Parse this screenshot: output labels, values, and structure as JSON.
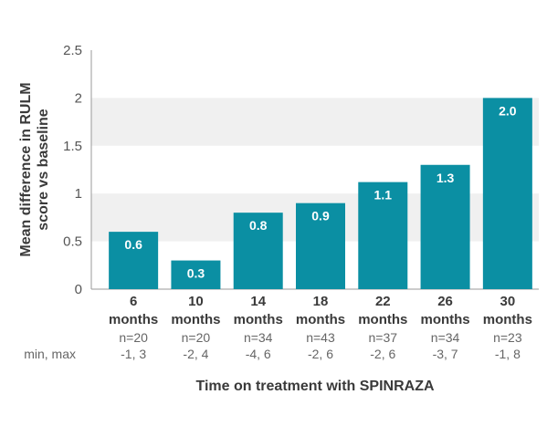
{
  "chart_data": {
    "type": "bar",
    "ylabel_line1": "Mean difference in RULM",
    "ylabel_line2": "score vs baseline",
    "xlabel": "Time on treatment with SPINRAZA",
    "ylim": [
      0,
      2.5
    ],
    "yticks": [
      "0",
      "0.5",
      "1",
      "1.5",
      "2",
      "2.5"
    ],
    "grid": "alternating horizontal bands",
    "bar_color": "#0b8fa3",
    "band_color": "#f0f0f0",
    "categories": [
      {
        "value_line": "6",
        "unit_line": "months"
      },
      {
        "value_line": "10",
        "unit_line": "months"
      },
      {
        "value_line": "14",
        "unit_line": "months"
      },
      {
        "value_line": "18",
        "unit_line": "months"
      },
      {
        "value_line": "22",
        "unit_line": "months"
      },
      {
        "value_line": "26",
        "unit_line": "months"
      },
      {
        "value_line": "30",
        "unit_line": "months"
      }
    ],
    "values": [
      0.6,
      0.3,
      0.8,
      0.9,
      1.12,
      1.3,
      2.0
    ],
    "data_labels": [
      "0.6",
      "0.3",
      "0.8",
      "0.9",
      "1.1",
      "1.3",
      "2.0"
    ],
    "n_values": [
      "n=20",
      "n=20",
      "n=34",
      "n=43",
      "n=37",
      "n=34",
      "n=23"
    ],
    "minmax_label": "min, max",
    "minmax_values": [
      "-1, 3",
      "-2, 4",
      "-4, 6",
      "-2, 6",
      "-2, 6",
      "-3, 7",
      "-1, 8"
    ]
  }
}
